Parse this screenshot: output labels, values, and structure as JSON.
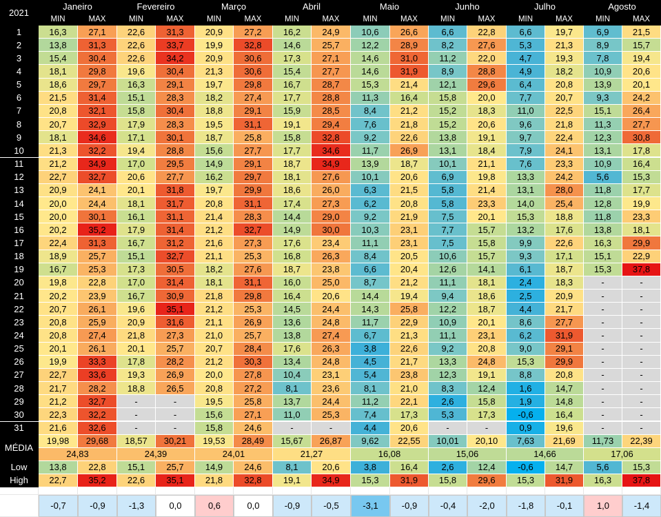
{
  "year": "2021",
  "months": [
    "Janeiro",
    "Fevereiro",
    "Março",
    "Abril",
    "Maio",
    "Junho",
    "Julho",
    "Agosto"
  ],
  "min_label": "MIN",
  "max_label": "MAX",
  "days": [
    [
      [
        "16,3",
        "27,1"
      ],
      [
        "22,6",
        "31,3"
      ],
      [
        "20,9",
        "27,2"
      ],
      [
        "16,2",
        "24,9"
      ],
      [
        "10,6",
        "26,6"
      ],
      [
        "6,6",
        "22,8"
      ],
      [
        "6,6",
        "19,7"
      ],
      [
        "6,9",
        "21,5"
      ]
    ],
    [
      [
        "13,8",
        "31,3"
      ],
      [
        "22,6",
        "33,7"
      ],
      [
        "19,9",
        "32,8"
      ],
      [
        "14,6",
        "25,7"
      ],
      [
        "12,2",
        "28,9"
      ],
      [
        "8,2",
        "27,6"
      ],
      [
        "5,3",
        "21,3"
      ],
      [
        "8,9",
        "15,7"
      ]
    ],
    [
      [
        "15,4",
        "30,4"
      ],
      [
        "22,6",
        "34,2"
      ],
      [
        "20,9",
        "30,6"
      ],
      [
        "17,3",
        "27,1"
      ],
      [
        "14,6",
        "31,0"
      ],
      [
        "11,2",
        "22,0"
      ],
      [
        "4,7",
        "19,3"
      ],
      [
        "7,8",
        "19,4"
      ]
    ],
    [
      [
        "18,1",
        "29,8"
      ],
      [
        "19,6",
        "30,4"
      ],
      [
        "21,3",
        "30,6"
      ],
      [
        "15,4",
        "27,7"
      ],
      [
        "14,6",
        "31,9"
      ],
      [
        "8,9",
        "28,8"
      ],
      [
        "4,9",
        "18,2"
      ],
      [
        "10,9",
        "20,6"
      ]
    ],
    [
      [
        "18,6",
        "29,7"
      ],
      [
        "16,3",
        "29,1"
      ],
      [
        "19,7",
        "29,8"
      ],
      [
        "16,7",
        "28,7"
      ],
      [
        "15,3",
        "21,4"
      ],
      [
        "12,1",
        "29,6"
      ],
      [
        "6,4",
        "20,8"
      ],
      [
        "13,9",
        "20,1"
      ]
    ],
    [
      [
        "21,5",
        "31,4"
      ],
      [
        "15,1",
        "28,3"
      ],
      [
        "18,2",
        "27,4"
      ],
      [
        "17,7",
        "28,8"
      ],
      [
        "11,3",
        "16,4"
      ],
      [
        "15,8",
        "20,0"
      ],
      [
        "7,7",
        "20,7"
      ],
      [
        "9,3",
        "24,2"
      ]
    ],
    [
      [
        "20,8",
        "32,1"
      ],
      [
        "15,8",
        "30,4"
      ],
      [
        "18,8",
        "29,1"
      ],
      [
        "15,9",
        "28,5"
      ],
      [
        "8,4",
        "21,2"
      ],
      [
        "15,2",
        "18,3"
      ],
      [
        "11,0",
        "22,5"
      ],
      [
        "15,1",
        "26,4"
      ]
    ],
    [
      [
        "20,7",
        "32,9"
      ],
      [
        "17,9",
        "28,3"
      ],
      [
        "19,5",
        "31,1"
      ],
      [
        "19,1",
        "29,4"
      ],
      [
        "7,6",
        "21,8"
      ],
      [
        "15,2",
        "20,6"
      ],
      [
        "9,6",
        "21,8"
      ],
      [
        "11,3",
        "27,7"
      ]
    ],
    [
      [
        "18,1",
        "34,6"
      ],
      [
        "17,1",
        "30,1"
      ],
      [
        "18,7",
        "25,8"
      ],
      [
        "15,8",
        "32,8"
      ],
      [
        "9,2",
        "22,6"
      ],
      [
        "13,8",
        "19,1"
      ],
      [
        "9,7",
        "22,4"
      ],
      [
        "12,3",
        "30,8"
      ]
    ],
    [
      [
        "21,3",
        "32,2"
      ],
      [
        "19,4",
        "28,8"
      ],
      [
        "15,6",
        "27,7"
      ],
      [
        "17,7",
        "34,6"
      ],
      [
        "11,7",
        "26,9"
      ],
      [
        "13,1",
        "18,4"
      ],
      [
        "7,9",
        "24,1"
      ],
      [
        "13,1",
        "17,8"
      ]
    ],
    [
      [
        "21,2",
        "34,9"
      ],
      [
        "17,0",
        "29,5"
      ],
      [
        "14,9",
        "29,1"
      ],
      [
        "18,7",
        "34,9"
      ],
      [
        "13,9",
        "18,7"
      ],
      [
        "10,1",
        "21,1"
      ],
      [
        "7,6",
        "23,3"
      ],
      [
        "10,9",
        "16,4"
      ]
    ],
    [
      [
        "22,7",
        "32,7"
      ],
      [
        "20,6",
        "27,7"
      ],
      [
        "16,2",
        "29,7"
      ],
      [
        "18,1",
        "27,6"
      ],
      [
        "10,1",
        "20,6"
      ],
      [
        "6,9",
        "19,8"
      ],
      [
        "13,3",
        "24,2"
      ],
      [
        "5,6",
        "15,3"
      ]
    ],
    [
      [
        "20,9",
        "24,1"
      ],
      [
        "20,1",
        "31,8"
      ],
      [
        "19,7",
        "29,9"
      ],
      [
        "18,6",
        "26,0"
      ],
      [
        "6,3",
        "21,5"
      ],
      [
        "5,8",
        "21,4"
      ],
      [
        "13,1",
        "28,0"
      ],
      [
        "11,8",
        "17,7"
      ]
    ],
    [
      [
        "20,0",
        "24,4"
      ],
      [
        "18,1",
        "31,7"
      ],
      [
        "20,8",
        "31,1"
      ],
      [
        "17,4",
        "27,3"
      ],
      [
        "6,2",
        "20,8"
      ],
      [
        "5,8",
        "23,3"
      ],
      [
        "14,0",
        "25,4"
      ],
      [
        "12,8",
        "19,9"
      ]
    ],
    [
      [
        "20,0",
        "30,1"
      ],
      [
        "16,1",
        "31,1"
      ],
      [
        "21,4",
        "28,3"
      ],
      [
        "14,4",
        "29,0"
      ],
      [
        "9,2",
        "21,9"
      ],
      [
        "7,5",
        "20,1"
      ],
      [
        "15,3",
        "18,8"
      ],
      [
        "11,8",
        "23,3"
      ]
    ],
    [
      [
        "20,2",
        "35,2"
      ],
      [
        "17,9",
        "31,4"
      ],
      [
        "21,2",
        "32,7"
      ],
      [
        "14,9",
        "30,0"
      ],
      [
        "10,3",
        "23,1"
      ],
      [
        "7,7",
        "15,7"
      ],
      [
        "13,2",
        "17,6"
      ],
      [
        "13,8",
        "18,1"
      ]
    ],
    [
      [
        "22,4",
        "31,3"
      ],
      [
        "16,7",
        "31,2"
      ],
      [
        "21,6",
        "27,3"
      ],
      [
        "17,6",
        "23,4"
      ],
      [
        "11,1",
        "23,1"
      ],
      [
        "7,5",
        "15,8"
      ],
      [
        "9,9",
        "22,6"
      ],
      [
        "16,3",
        "29,9"
      ]
    ],
    [
      [
        "18,9",
        "25,7"
      ],
      [
        "15,1",
        "32,7"
      ],
      [
        "21,1",
        "25,3"
      ],
      [
        "16,8",
        "26,3"
      ],
      [
        "8,4",
        "20,5"
      ],
      [
        "10,6",
        "15,7"
      ],
      [
        "9,3",
        "17,1"
      ],
      [
        "15,1",
        "22,9"
      ]
    ],
    [
      [
        "16,7",
        "25,3"
      ],
      [
        "17,3",
        "30,5"
      ],
      [
        "18,2",
        "27,6"
      ],
      [
        "18,7",
        "23,8"
      ],
      [
        "6,6",
        "20,4"
      ],
      [
        "12,6",
        "14,1"
      ],
      [
        "6,1",
        "18,7"
      ],
      [
        "15,3",
        "37,8"
      ]
    ],
    [
      [
        "19,8",
        "22,8"
      ],
      [
        "17,0",
        "31,4"
      ],
      [
        "18,1",
        "31,1"
      ],
      [
        "16,0",
        "25,0"
      ],
      [
        "8,7",
        "21,2"
      ],
      [
        "11,1",
        "18,1"
      ],
      [
        "2,4",
        "18,3"
      ],
      [
        "-",
        "-"
      ]
    ],
    [
      [
        "20,2",
        "23,9"
      ],
      [
        "16,7",
        "30,9"
      ],
      [
        "21,8",
        "29,8"
      ],
      [
        "16,4",
        "20,6"
      ],
      [
        "14,4",
        "19,4"
      ],
      [
        "9,4",
        "18,6"
      ],
      [
        "2,5",
        "20,9"
      ],
      [
        "-",
        "-"
      ]
    ],
    [
      [
        "20,7",
        "26,1"
      ],
      [
        "19,6",
        "35,1"
      ],
      [
        "21,2",
        "25,3"
      ],
      [
        "14,5",
        "24,4"
      ],
      [
        "14,3",
        "25,8"
      ],
      [
        "12,2",
        "18,7"
      ],
      [
        "4,4",
        "21,7"
      ],
      [
        "-",
        "-"
      ]
    ],
    [
      [
        "20,8",
        "25,9"
      ],
      [
        "20,9",
        "31,6"
      ],
      [
        "21,1",
        "26,9"
      ],
      [
        "13,6",
        "24,8"
      ],
      [
        "11,7",
        "22,9"
      ],
      [
        "10,9",
        "20,1"
      ],
      [
        "8,6",
        "27,7"
      ],
      [
        "-",
        "-"
      ]
    ],
    [
      [
        "20,8",
        "27,4"
      ],
      [
        "21,8",
        "27,3"
      ],
      [
        "21,0",
        "25,7"
      ],
      [
        "13,8",
        "27,4"
      ],
      [
        "6,7",
        "21,3"
      ],
      [
        "11,1",
        "23,1"
      ],
      [
        "6,2",
        "31,9"
      ],
      [
        "-",
        "-"
      ]
    ],
    [
      [
        "20,1",
        "26,1"
      ],
      [
        "20,1",
        "25,7"
      ],
      [
        "20,7",
        "28,4"
      ],
      [
        "17,6",
        "26,3"
      ],
      [
        "3,8",
        "22,6"
      ],
      [
        "9,2",
        "20,8"
      ],
      [
        "9,0",
        "29,1"
      ],
      [
        "-",
        "-"
      ]
    ],
    [
      [
        "19,9",
        "33,3"
      ],
      [
        "17,8",
        "28,2"
      ],
      [
        "21,2",
        "30,3"
      ],
      [
        "13,4",
        "24,8"
      ],
      [
        "4,5",
        "21,7"
      ],
      [
        "13,3",
        "24,8"
      ],
      [
        "15,3",
        "29,9"
      ],
      [
        "-",
        "-"
      ]
    ],
    [
      [
        "22,7",
        "33,6"
      ],
      [
        "19,3",
        "26,9"
      ],
      [
        "20,0",
        "27,8"
      ],
      [
        "10,4",
        "23,1"
      ],
      [
        "5,4",
        "23,8"
      ],
      [
        "12,3",
        "19,1"
      ],
      [
        "8,8",
        "20,8"
      ],
      [
        "-",
        "-"
      ]
    ],
    [
      [
        "21,7",
        "28,2"
      ],
      [
        "18,8",
        "26,5"
      ],
      [
        "20,8",
        "27,2"
      ],
      [
        "8,1",
        "23,6"
      ],
      [
        "8,1",
        "21,0"
      ],
      [
        "8,3",
        "12,4"
      ],
      [
        "1,6",
        "14,7"
      ],
      [
        "-",
        "-"
      ]
    ],
    [
      [
        "21,2",
        "32,7"
      ],
      [
        "-",
        "-"
      ],
      [
        "19,5",
        "25,8"
      ],
      [
        "13,7",
        "24,4"
      ],
      [
        "11,2",
        "22,1"
      ],
      [
        "2,6",
        "15,8"
      ],
      [
        "1,9",
        "14,8"
      ],
      [
        "-",
        "-"
      ]
    ],
    [
      [
        "22,3",
        "32,2"
      ],
      [
        "-",
        "-"
      ],
      [
        "15,6",
        "27,1"
      ],
      [
        "11,0",
        "25,3"
      ],
      [
        "7,4",
        "17,3"
      ],
      [
        "5,3",
        "17,3"
      ],
      [
        "-0,6",
        "16,4"
      ],
      [
        "-",
        "-"
      ]
    ],
    [
      [
        "21,6",
        "32,6"
      ],
      [
        "-",
        "-"
      ],
      [
        "15,8",
        "24,6"
      ],
      [
        "-",
        "-"
      ],
      [
        "4,4",
        "20,6"
      ],
      [
        "-",
        "-"
      ],
      [
        "0,9",
        "19,6"
      ],
      [
        "-",
        "-"
      ]
    ]
  ],
  "media_label": "MÉDIA",
  "media": [
    [
      "19,98",
      "29,68"
    ],
    [
      "18,57",
      "30,21"
    ],
    [
      "19,53",
      "28,49"
    ],
    [
      "15,67",
      "26,87"
    ],
    [
      "9,62",
      "22,55"
    ],
    [
      "10,01",
      "20,10"
    ],
    [
      "7,63",
      "21,69"
    ],
    [
      "11,73",
      "22,39"
    ]
  ],
  "media_combined": [
    "24,83",
    "24,39",
    "24,01",
    "21,27",
    "16,08",
    "15,06",
    "14,66",
    "17,06"
  ],
  "low_label": "Low",
  "low": [
    [
      "13,8",
      "22,8"
    ],
    [
      "15,1",
      "25,7"
    ],
    [
      "14,9",
      "24,6"
    ],
    [
      "8,1",
      "20,6"
    ],
    [
      "3,8",
      "16,4"
    ],
    [
      "2,6",
      "12,4"
    ],
    [
      "-0,6",
      "14,7"
    ],
    [
      "5,6",
      "15,3"
    ]
  ],
  "high_label": "High",
  "high": [
    [
      "22,7",
      "35,2"
    ],
    [
      "22,6",
      "35,1"
    ],
    [
      "21,8",
      "32,8"
    ],
    [
      "19,1",
      "34,9"
    ],
    [
      "15,3",
      "31,9"
    ],
    [
      "15,8",
      "29,6"
    ],
    [
      "15,3",
      "31,9"
    ],
    [
      "16,3",
      "37,8"
    ]
  ],
  "diff": [
    [
      "-0,7",
      "-0,9"
    ],
    [
      "-1,3",
      "0,0"
    ],
    [
      "0,6",
      "0,0"
    ],
    [
      "-0,9",
      "-0,5"
    ],
    [
      "-3,1",
      "-0,9"
    ],
    [
      "-0,4",
      "-2,0"
    ],
    [
      "-1,8",
      "-0,1"
    ],
    [
      "1,0",
      "-1,4"
    ]
  ]
}
